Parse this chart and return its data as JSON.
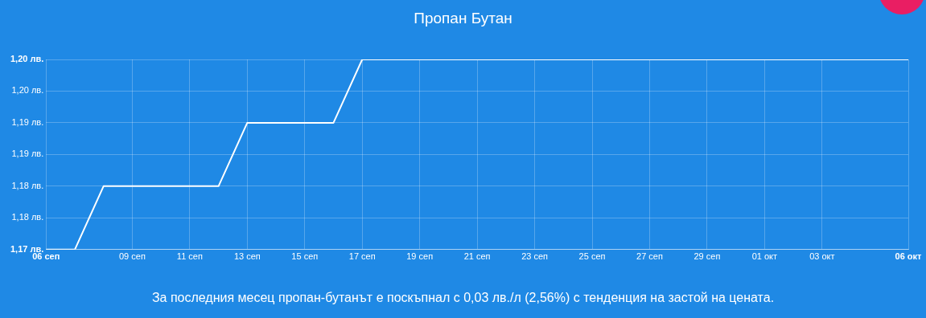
{
  "chart_data": {
    "type": "line",
    "title": "Пропан Бутан",
    "x": [
      "--09-06",
      "--09-07",
      "--09-08",
      "--09-12",
      "--09-13",
      "--09-16",
      "--09-17",
      "--10-06"
    ],
    "series": [
      {
        "color": "#ffffff",
        "values": [
          1.17,
          1.17,
          1.18,
          1.18,
          1.19,
          1.19,
          1.2,
          1.2
        ]
      }
    ],
    "xlim": [
      "--09-06",
      "--10-06"
    ],
    "xticks": [
      {
        "value": "--09-06",
        "label": "06 сеп"
      },
      {
        "value": "--09-09",
        "label": "09 сеп"
      },
      {
        "value": "--09-11",
        "label": "11 сеп"
      },
      {
        "value": "--09-13",
        "label": "13 сеп"
      },
      {
        "value": "--09-15",
        "label": "15 сеп"
      },
      {
        "value": "--09-17",
        "label": "17 сеп"
      },
      {
        "value": "--09-19",
        "label": "19 сеп"
      },
      {
        "value": "--09-21",
        "label": "21 сеп"
      },
      {
        "value": "--09-23",
        "label": "23 сеп"
      },
      {
        "value": "--09-25",
        "label": "25 сеп"
      },
      {
        "value": "--09-27",
        "label": "27 сеп"
      },
      {
        "value": "--09-29",
        "label": "29 сеп"
      },
      {
        "value": "--10-01",
        "label": "01 окт"
      },
      {
        "value": "--10-03",
        "label": "03 окт"
      },
      {
        "value": "--10-06",
        "label": "06 окт"
      }
    ],
    "ylim": [
      1.17,
      1.2
    ],
    "yticks": [
      {
        "value": 1.17,
        "label": "1,17 лв."
      },
      {
        "value": 1.175,
        "label": "1,18 лв."
      },
      {
        "value": 1.18,
        "label": "1,18 лв."
      },
      {
        "value": 1.185,
        "label": "1,19 лв."
      },
      {
        "value": 1.19,
        "label": "1,19 лв."
      },
      {
        "value": 1.195,
        "label": "1,20 лв."
      },
      {
        "value": 1.2,
        "label": "1,20 лв."
      }
    ],
    "grid": true,
    "legend": false,
    "marker": "none",
    "line_style": "solid",
    "annotations": [
      "За последния месец пропан-бутанът е поскъпнал с 0,03 лв./л (2,56%) с тенденция на застой на цената."
    ]
  }
}
